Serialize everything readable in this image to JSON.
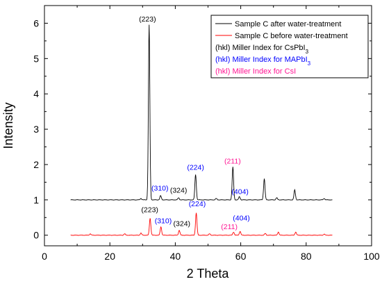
{
  "chart_data": {
    "type": "line",
    "xlabel": "2 Theta",
    "ylabel": "Intensity",
    "xlim": [
      0,
      100
    ],
    "ylim": [
      -0.3,
      6.5
    ],
    "xticks": [
      0,
      20,
      40,
      60,
      80,
      100
    ],
    "yticks": [
      0,
      1,
      2,
      3,
      4,
      5,
      6
    ],
    "grid": false,
    "legend_position": "top-right",
    "legend": [
      {
        "text": "Sample C after water-treatment",
        "color": "#000000",
        "kind": "line"
      },
      {
        "text": "Sample C before water-treatment",
        "color": "#ff0000",
        "kind": "line"
      },
      {
        "text": "(hkl)  Miller Index for CsPbI",
        "sub": "3",
        "color": "#000000",
        "kind": "text"
      },
      {
        "text": "(hkl)  Miller Index for MAPbI",
        "sub": "3",
        "color": "#0000ff",
        "kind": "text"
      },
      {
        "text": "(hkl)  Miller Index for CsI",
        "sub": "",
        "color": "#ff1493",
        "kind": "text"
      }
    ],
    "series": [
      {
        "name": "Sample C after water-treatment",
        "color": "#000000",
        "baseline": 1.0,
        "x_start": 8,
        "x_end": 88,
        "peaks": [
          {
            "x": 29.5,
            "y": 0.04
          },
          {
            "x": 32.0,
            "y": 4.95
          },
          {
            "x": 35.5,
            "y": 0.12
          },
          {
            "x": 41.0,
            "y": 0.06
          },
          {
            "x": 46.2,
            "y": 0.72
          },
          {
            "x": 52.5,
            "y": 0.04
          },
          {
            "x": 57.6,
            "y": 0.93
          },
          {
            "x": 59.6,
            "y": 0.09
          },
          {
            "x": 67.2,
            "y": 0.6
          },
          {
            "x": 71.0,
            "y": 0.06
          },
          {
            "x": 76.5,
            "y": 0.28
          },
          {
            "x": 85.5,
            "y": 0.04
          }
        ]
      },
      {
        "name": "Sample C before water-treatment",
        "color": "#ff0000",
        "baseline": 0.0,
        "x_start": 8,
        "x_end": 88,
        "peaks": [
          {
            "x": 14.0,
            "y": 0.04
          },
          {
            "x": 24.5,
            "y": 0.04
          },
          {
            "x": 29.5,
            "y": 0.06
          },
          {
            "x": 32.3,
            "y": 0.48
          },
          {
            "x": 35.6,
            "y": 0.24
          },
          {
            "x": 41.2,
            "y": 0.14
          },
          {
            "x": 46.4,
            "y": 0.63
          },
          {
            "x": 50.5,
            "y": 0.04
          },
          {
            "x": 57.8,
            "y": 0.09
          },
          {
            "x": 59.8,
            "y": 0.11
          },
          {
            "x": 67.5,
            "y": 0.05
          },
          {
            "x": 71.5,
            "y": 0.09
          },
          {
            "x": 76.8,
            "y": 0.09
          },
          {
            "x": 85.5,
            "y": 0.03
          }
        ]
      }
    ],
    "annotations": [
      {
        "text": "(223)",
        "x": 31.5,
        "y": 6.05,
        "color": "#000000"
      },
      {
        "text": "(310)",
        "x": 35.3,
        "y": 1.26,
        "color": "#0000ff"
      },
      {
        "text": "(324)",
        "x": 41.0,
        "y": 1.2,
        "color": "#000000"
      },
      {
        "text": "(224)",
        "x": 46.2,
        "y": 1.85,
        "color": "#0000ff"
      },
      {
        "text": "(211)",
        "x": 57.5,
        "y": 2.03,
        "color": "#ff1493"
      },
      {
        "text": "(404)",
        "x": 59.8,
        "y": 1.16,
        "color": "#0000ff"
      },
      {
        "text": "(223)",
        "x": 32.2,
        "y": 0.65,
        "color": "#000000"
      },
      {
        "text": "(310)",
        "x": 36.3,
        "y": 0.34,
        "color": "#0000ff"
      },
      {
        "text": "(324)",
        "x": 42.0,
        "y": 0.26,
        "color": "#000000"
      },
      {
        "text": "(224)",
        "x": 46.7,
        "y": 0.82,
        "color": "#0000ff"
      },
      {
        "text": "(211)",
        "x": 56.5,
        "y": 0.17,
        "color": "#ff1493"
      },
      {
        "text": "(404)",
        "x": 60.2,
        "y": 0.42,
        "color": "#0000ff"
      }
    ]
  }
}
